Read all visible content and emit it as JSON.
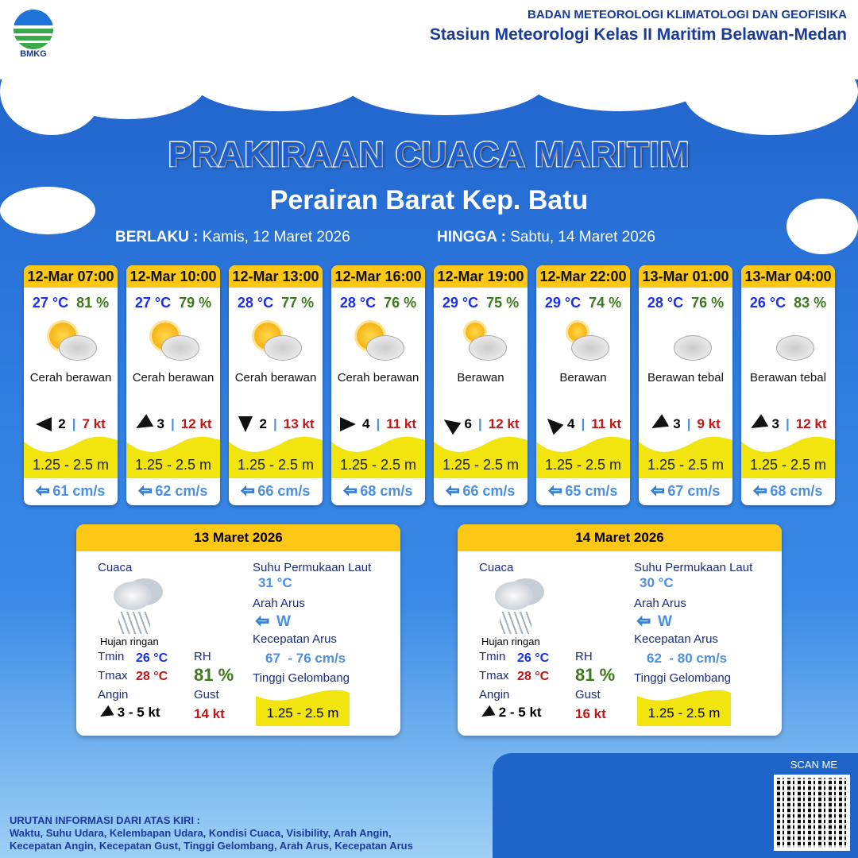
{
  "header": {
    "logo_text": "BMKG",
    "org_line1": "BADAN METEOROLOGI KLIMATOLOGI DAN GEOFISIKA",
    "org_line2": "Stasiun Meteorologi Kelas II Maritim Belawan-Medan"
  },
  "title": "PRAKIRAAN CUACA MARITIM",
  "area": "Perairan Barat Kep. Batu",
  "validity": {
    "from_label": "BERLAKU :",
    "from": "Kamis, 12 Maret 2026",
    "to_label": "HINGGA :",
    "to": "Sabtu, 14 Maret 2026"
  },
  "forecasts": [
    {
      "time": "12-Mar 07:00",
      "temp": "27 °C",
      "rh": "81 %",
      "icon": "partly-cloudy",
      "condition": "Cerah berawan",
      "wind_dir_deg": 180,
      "wind_speed": "2",
      "gust": "7 kt",
      "wave": "1.25 - 2.5 m",
      "current": "61 cm/s"
    },
    {
      "time": "12-Mar 10:00",
      "temp": "27 °C",
      "rh": "79 %",
      "icon": "partly-cloudy",
      "condition": "Cerah berawan",
      "wind_dir_deg": 150,
      "wind_speed": "3",
      "gust": "12 kt",
      "wave": "1.25 - 2.5 m",
      "current": "62 cm/s"
    },
    {
      "time": "12-Mar 13:00",
      "temp": "28 °C",
      "rh": "77 %",
      "icon": "partly-cloudy",
      "condition": "Cerah berawan",
      "wind_dir_deg": 90,
      "wind_speed": "2",
      "gust": "13 kt",
      "wave": "1.25 - 2.5 m",
      "current": "66 cm/s"
    },
    {
      "time": "12-Mar 16:00",
      "temp": "28 °C",
      "rh": "76 %",
      "icon": "partly-cloudy",
      "condition": "Cerah berawan",
      "wind_dir_deg": 0,
      "wind_speed": "4",
      "gust": "11 kt",
      "wave": "1.25 - 2.5 m",
      "current": "68 cm/s"
    },
    {
      "time": "12-Mar 19:00",
      "temp": "29 °C",
      "rh": "75 %",
      "icon": "cloudy",
      "condition": "Berawan",
      "wind_dir_deg": -145,
      "wind_speed": "6",
      "gust": "12 kt",
      "wave": "1.25 - 2.5 m",
      "current": "66 cm/s"
    },
    {
      "time": "12-Mar 22:00",
      "temp": "29 °C",
      "rh": "74 %",
      "icon": "cloudy",
      "condition": "Berawan",
      "wind_dir_deg": -135,
      "wind_speed": "4",
      "gust": "11 kt",
      "wave": "1.25 - 2.5 m",
      "current": "65 cm/s"
    },
    {
      "time": "13-Mar 01:00",
      "temp": "28 °C",
      "rh": "76 %",
      "icon": "overcast",
      "condition": "Berawan tebal",
      "wind_dir_deg": 150,
      "wind_speed": "3",
      "gust": "9 kt",
      "wave": "1.25 - 2.5 m",
      "current": "67 cm/s"
    },
    {
      "time": "13-Mar 04:00",
      "temp": "26 °C",
      "rh": "83 %",
      "icon": "overcast",
      "condition": "Berawan tebal",
      "wind_dir_deg": 150,
      "wind_speed": "3",
      "gust": "12 kt",
      "wave": "1.25 - 2.5 m",
      "current": "68 cm/s"
    }
  ],
  "labels": {
    "weather": "Cuaca",
    "tmin": "Tmin",
    "tmax": "Tmax",
    "rh": "RH",
    "wind": "Angin",
    "gust": "Gust",
    "sst": "Suhu Permukaan Laut",
    "current_dir": "Arah Arus",
    "current_speed": "Kecepatan Arus",
    "wave": "Tinggi Gelombang"
  },
  "daily": [
    {
      "date": "13 Maret 2026",
      "condition": "Hujan ringan",
      "icon": "light-rain",
      "tmin": "26 °C",
      "tmax": "28 °C",
      "rh": "81 %",
      "wind": "3  - 5 kt",
      "gust": "14 kt",
      "sst": "31 °C",
      "current_dir": "W",
      "current_speed": "67  - 76 cm/s",
      "wave": "1.25 - 2.5 m"
    },
    {
      "date": "14 Maret 2026",
      "condition": "Hujan ringan",
      "icon": "light-rain",
      "tmin": "26 °C",
      "tmax": "28 °C",
      "rh": "81 %",
      "wind": "2  - 5 kt",
      "gust": "16 kt",
      "sst": "30 °C",
      "current_dir": "W",
      "current_speed": "62  - 80 cm/s",
      "wave": "1.25 - 2.5 m"
    }
  ],
  "qr": {
    "label": "SCAN ME"
  },
  "footer": {
    "line1": "URUTAN INFORMASI DARI ATAS KIRI :",
    "line2": "Waktu, Suhu Udara, Kelembapan Udara, Kondisi Cuaca, Visibility, Arah Angin,",
    "line3": "Kecepatan Angin, Kecepatan Gust, Tinggi Gelombang, Arah Arus, Kecepatan Arus"
  },
  "colors": {
    "header_yellow": "#fdc815",
    "wave_yellow": "#f2e40f",
    "temp": "#1b2ff0",
    "rh": "#3d7a1c",
    "gust": "#c01818",
    "current": "#4b8fe0"
  }
}
